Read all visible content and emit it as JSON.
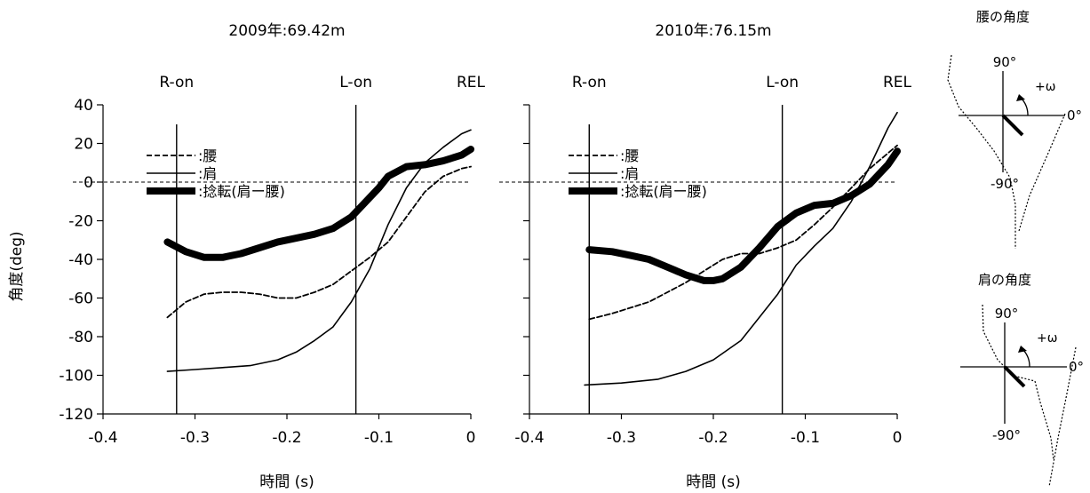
{
  "ylabel": "角度(deg)",
  "legend": [
    {
      "label": ":腰",
      "style": "dashed"
    },
    {
      "label": ":肩",
      "style": "thin"
    },
    {
      "label": ":捻転(肩ー腰)",
      "style": "thick"
    }
  ],
  "chart_data": [
    {
      "type": "line",
      "title": "2009年:69.42m",
      "xlabel": "時間 (s)",
      "ylabel": "角度(deg)",
      "xlim": [
        -0.4,
        0
      ],
      "ylim": [
        -120,
        40
      ],
      "xticks": [
        "-0.4",
        "-0.3",
        "-0.2",
        "-0.1",
        "0"
      ],
      "yticks": [
        "40",
        "20",
        "0",
        "-20",
        "-40",
        "-60",
        "-80",
        "-100",
        "-120"
      ],
      "events": [
        {
          "label": "R-on",
          "x": -0.32
        },
        {
          "label": "L-on",
          "x": -0.125
        },
        {
          "label": "REL",
          "x": 0
        }
      ],
      "series": [
        {
          "name": ":腰",
          "style": "dashed",
          "x": [
            -0.33,
            -0.31,
            -0.29,
            -0.27,
            -0.25,
            -0.23,
            -0.21,
            -0.19,
            -0.17,
            -0.15,
            -0.13,
            -0.11,
            -0.09,
            -0.07,
            -0.05,
            -0.03,
            -0.01,
            0
          ],
          "y": [
            -70,
            -62,
            -58,
            -57,
            -57,
            -58,
            -60,
            -60,
            -57,
            -53,
            -46,
            -39,
            -31,
            -18,
            -5,
            3,
            7,
            8
          ]
        },
        {
          "name": ":肩",
          "style": "thin",
          "x": [
            -0.33,
            -0.3,
            -0.27,
            -0.24,
            -0.21,
            -0.19,
            -0.17,
            -0.15,
            -0.13,
            -0.11,
            -0.09,
            -0.07,
            -0.05,
            -0.03,
            -0.01,
            0
          ],
          "y": [
            -98,
            -97,
            -96,
            -95,
            -92,
            -88,
            -82,
            -75,
            -62,
            -45,
            -22,
            -3,
            10,
            18,
            25,
            27
          ]
        },
        {
          "name": ":捻転(肩ー腰)",
          "style": "thick",
          "x": [
            -0.33,
            -0.31,
            -0.29,
            -0.27,
            -0.25,
            -0.23,
            -0.21,
            -0.19,
            -0.17,
            -0.15,
            -0.13,
            -0.11,
            -0.1,
            -0.09,
            -0.07,
            -0.05,
            -0.03,
            -0.01,
            0
          ],
          "y": [
            -31,
            -36,
            -39,
            -39,
            -37,
            -34,
            -31,
            -29,
            -27,
            -24,
            -18,
            -8,
            -3,
            3,
            8,
            9,
            11,
            14,
            17
          ]
        }
      ]
    },
    {
      "type": "line",
      "title": "2010年:76.15m",
      "xlabel": "時間 (s)",
      "ylabel": "角度(deg)",
      "xlim": [
        -0.4,
        0
      ],
      "ylim": [
        -120,
        40
      ],
      "xticks": [
        "-0.4",
        "-0.3",
        "-0.2",
        "-0.1",
        "0"
      ],
      "yticks": [
        "40",
        "20",
        "0",
        "-20",
        "-40",
        "-60",
        "-80",
        "-100",
        "-120"
      ],
      "events": [
        {
          "label": "R-on",
          "x": -0.335
        },
        {
          "label": "L-on",
          "x": -0.125
        },
        {
          "label": "REL",
          "x": 0
        }
      ],
      "series": [
        {
          "name": ":腰",
          "style": "dashed",
          "x": [
            -0.335,
            -0.31,
            -0.29,
            -0.27,
            -0.25,
            -0.23,
            -0.21,
            -0.19,
            -0.17,
            -0.15,
            -0.13,
            -0.11,
            -0.09,
            -0.07,
            -0.05,
            -0.03,
            -0.01,
            0
          ],
          "y": [
            -71,
            -68,
            -65,
            -62,
            -57,
            -52,
            -46,
            -40,
            -37,
            -37,
            -34,
            -30,
            -22,
            -13,
            -3,
            7,
            15,
            19
          ]
        },
        {
          "name": ":肩",
          "style": "thin",
          "x": [
            -0.34,
            -0.3,
            -0.26,
            -0.23,
            -0.2,
            -0.17,
            -0.15,
            -0.13,
            -0.11,
            -0.09,
            -0.07,
            -0.05,
            -0.03,
            -0.01,
            0
          ],
          "y": [
            -105,
            -104,
            -102,
            -98,
            -92,
            -82,
            -70,
            -58,
            -43,
            -33,
            -24,
            -10,
            8,
            28,
            36
          ]
        },
        {
          "name": ":捻転(肩ー腰)",
          "style": "thick",
          "x": [
            -0.335,
            -0.31,
            -0.29,
            -0.27,
            -0.25,
            -0.23,
            -0.21,
            -0.2,
            -0.19,
            -0.17,
            -0.15,
            -0.13,
            -0.11,
            -0.09,
            -0.07,
            -0.05,
            -0.03,
            -0.01,
            0
          ],
          "y": [
            -35,
            -36,
            -38,
            -40,
            -44,
            -48,
            -51,
            -51,
            -50,
            -44,
            -34,
            -23,
            -16,
            -12,
            -11,
            -7,
            -1,
            9,
            16
          ]
        }
      ]
    }
  ],
  "diagrams": [
    {
      "title": "腰の角度",
      "up": "90°",
      "down": "-90°",
      "right": "0°",
      "omega": "+ω"
    },
    {
      "title": "肩の角度",
      "up": "90°",
      "down": "-90°",
      "right": "0°",
      "omega": "+ω"
    }
  ]
}
